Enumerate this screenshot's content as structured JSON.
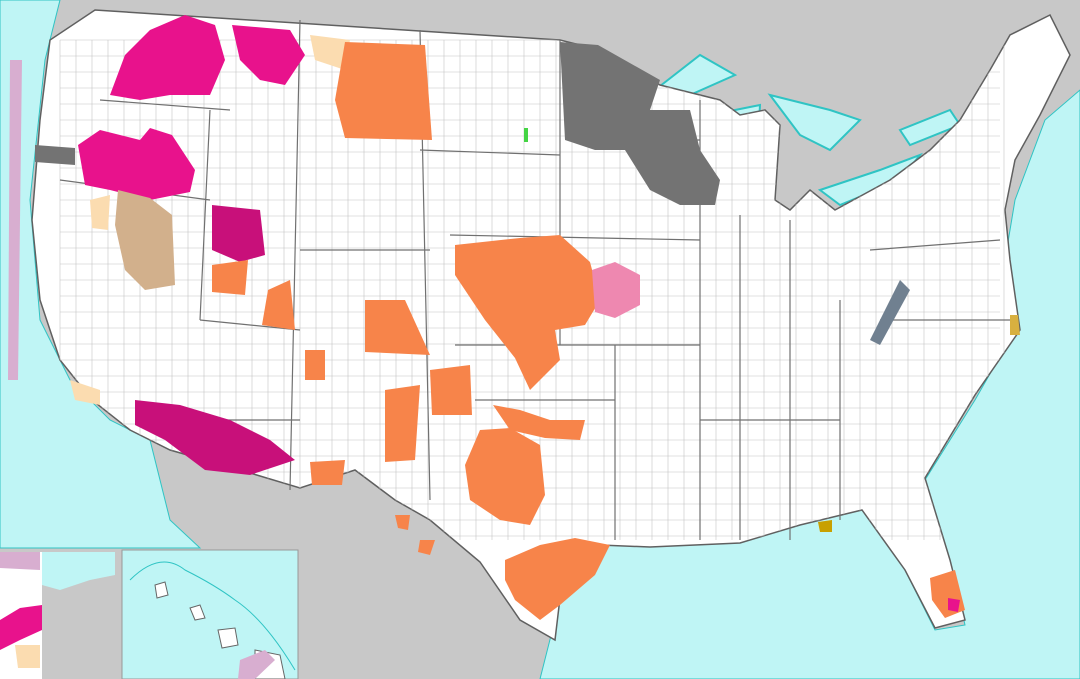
{
  "map": {
    "colors": {
      "foreign_land": "#c8c8c8",
      "ocean_marine_zones": "#bff5f5",
      "marine_zone_lines": "#2fc4c4",
      "us_land": "#ffffff",
      "county_lines": "#b4b4b4",
      "state_lines": "#606060",
      "alert_magenta": "#e8128c",
      "alert_orange": "#f7844a",
      "alert_dark_gray": "#737373",
      "alert_tan": "#d2b08c",
      "alert_peach": "#fbdcb0",
      "alert_pink": "#ee88b0",
      "alert_lavender": "#d8aed0",
      "alert_green": "#44d444",
      "alert_slate": "#708090",
      "alert_olive": "#c8a000"
    }
  }
}
